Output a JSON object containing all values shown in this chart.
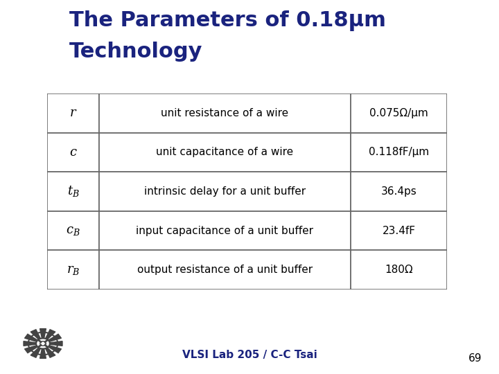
{
  "title_line1": "The Parameters of 0.18μm",
  "title_line2": "Technology",
  "title_color": "#1a237e",
  "bg_color": "#ffffff",
  "footer_text": "VLSI Lab 205 / C-C Tsai",
  "footer_color": "#1a237e",
  "page_number": "69",
  "table_rows": [
    [
      "$r$",
      "unit resistance of a wire",
      "0.075Ω/μm"
    ],
    [
      "$c$",
      "unit capacitance of a wire",
      "0.118fF/μm"
    ],
    [
      "$t_B$",
      "intrinsic delay for a unit buffer",
      "36.4ps"
    ],
    [
      "$c_B$",
      "input capacitance of a unit buffer",
      "23.4fF"
    ],
    [
      "$r_B$",
      "output resistance of a unit buffer",
      "180Ω"
    ]
  ],
  "accent_yellow": "#FFD700",
  "accent_red": "#EE4444",
  "accent_blue": "#1a237e",
  "line_color": "#888888"
}
